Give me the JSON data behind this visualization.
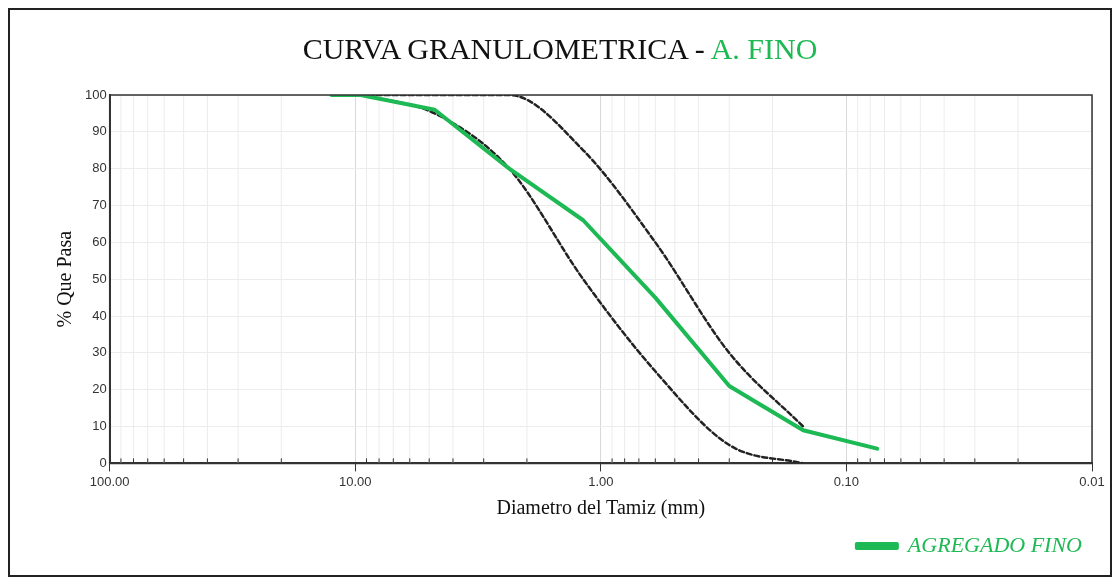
{
  "chart_data": {
    "type": "line",
    "title": "CURVA GRANULOMETRICA - A. FINO",
    "xlabel": "Diametro del Tamiz (mm)",
    "ylabel": "% Que Pasa",
    "log": "x",
    "xlim": [
      100,
      0.01
    ],
    "xticks": [
      {
        "value": 100,
        "label": "100.00"
      },
      {
        "value": 10,
        "label": "10.00"
      },
      {
        "value": 1,
        "label": "1.00"
      },
      {
        "value": 0.1,
        "label": "0.10"
      },
      {
        "value": 0.01,
        "label": "0.01"
      }
    ],
    "ylim": [
      0,
      100
    ],
    "yticks": [
      0,
      10,
      20,
      30,
      40,
      50,
      60,
      70,
      80,
      90,
      100
    ],
    "grid": true,
    "legend": "bottom right",
    "series": [
      {
        "name": "AGREGADO FINO",
        "color": "#1db954",
        "line_style": "solid",
        "x": [
          12.5,
          9.5,
          4.75,
          2.36,
          1.18,
          0.6,
          0.3,
          0.15,
          0.075
        ],
        "values": [
          100,
          100,
          96,
          80,
          66,
          45,
          21,
          9,
          4
        ]
      },
      {
        "color": "#222222",
        "line_style": "dashed",
        "x": [
          9.5,
          4.75,
          2.36,
          1.18,
          0.6,
          0.3,
          0.15
        ],
        "values": [
          100,
          100,
          100,
          85,
          60,
          30,
          10
        ]
      },
      {
        "color": "#222222",
        "line_style": "dashed",
        "x": [
          9.5,
          4.75,
          2.36,
          1.18,
          0.6,
          0.3,
          0.15
        ],
        "values": [
          100,
          95,
          80,
          50,
          25,
          5,
          0
        ]
      }
    ]
  }
}
